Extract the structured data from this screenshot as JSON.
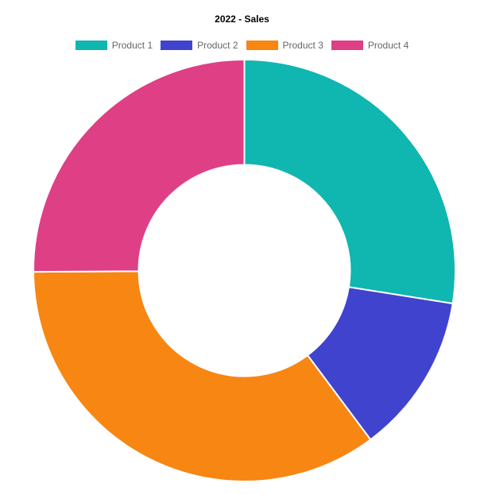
{
  "chart_data": {
    "type": "pie",
    "variant": "doughnut",
    "title": "2022 - Sales",
    "legend_position": "top",
    "categories": [
      "Product 1",
      "Product 2",
      "Product 3",
      "Product 4"
    ],
    "values": [
      27.5,
      12.3,
      35.1,
      25.1
    ],
    "colors": [
      "#10b6b0",
      "#4043cd",
      "#f78612",
      "#de3f85"
    ]
  }
}
